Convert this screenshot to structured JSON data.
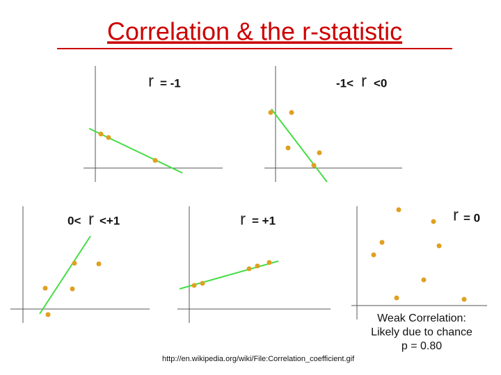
{
  "title": "Correlation & the r-statistic",
  "panels": [
    {
      "parts": [
        "r",
        "= -1"
      ]
    },
    {
      "parts": [
        "-1<",
        "r",
        "<0"
      ]
    },
    {
      "parts": [
        "0<",
        "r",
        "<+1"
      ]
    },
    {
      "parts": [
        "r",
        "= +1"
      ]
    },
    {
      "parts": [
        "r",
        "= 0"
      ]
    }
  ],
  "caption": [
    "Weak Correlation:",
    "Likely due to chance",
    "p = 0.80"
  ],
  "source": "http://en.wikipedia.org/wiki/File:Correlation_coefficient.gif"
}
